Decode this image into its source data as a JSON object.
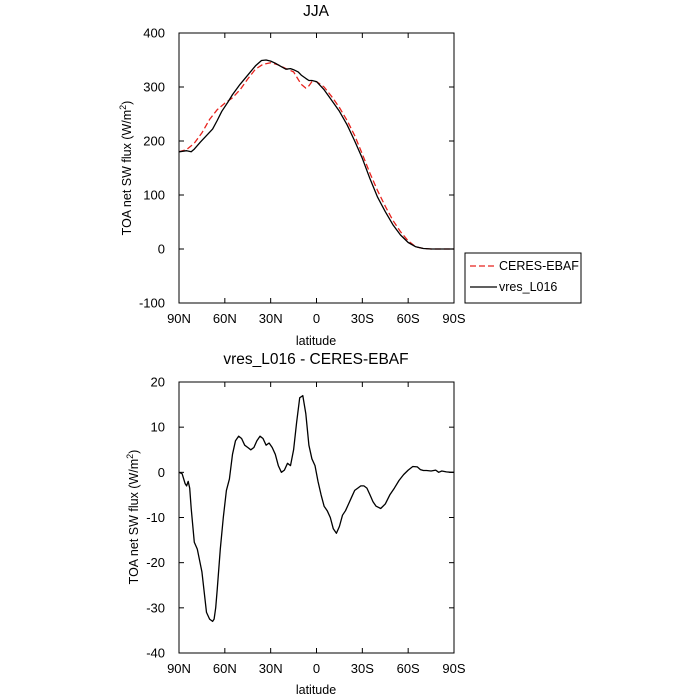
{
  "chart_data": [
    {
      "type": "line",
      "title": "JJA",
      "xlabel": "latitude",
      "ylabel": "TOA net SW flux (W/m²)",
      "xlim": [
        90,
        -90
      ],
      "ylim": [
        -100,
        400
      ],
      "xticks": [
        90,
        60,
        30,
        0,
        -30,
        -60,
        -90
      ],
      "xtick_labels": [
        "90N",
        "60N",
        "30N",
        "0",
        "30S",
        "60S",
        "90S"
      ],
      "yticks": [
        -100,
        0,
        100,
        200,
        300,
        400
      ],
      "ytick_labels": [
        "-100",
        "0",
        "100",
        "200",
        "300",
        "400"
      ],
      "grid": false,
      "legend": "outside-right",
      "series": [
        {
          "name": "CERES-EBAF",
          "color": "#e8231e",
          "dash": "dashed",
          "x": [
            90,
            85,
            80,
            75,
            70,
            65,
            60,
            55,
            50,
            45,
            40,
            35,
            30,
            25,
            20,
            15,
            10,
            7,
            5,
            3,
            0,
            -5,
            -10,
            -15,
            -20,
            -25,
            -30,
            -35,
            -40,
            -45,
            -50,
            -55,
            -60,
            -65,
            -70,
            -75,
            -80,
            -85,
            -90
          ],
          "y": [
            180,
            184,
            196,
            215,
            240,
            258,
            270,
            280,
            295,
            315,
            333,
            342,
            345,
            341,
            334,
            328,
            305,
            298,
            302,
            310,
            310,
            300,
            282,
            262,
            238,
            210,
            176,
            140,
            108,
            79,
            53,
            32,
            15,
            4,
            1,
            0,
            0,
            0,
            0
          ]
        },
        {
          "name": "vres_L016",
          "color": "#000000",
          "dash": "solid",
          "x": [
            90,
            85,
            82,
            80,
            76,
            72,
            68,
            65,
            62,
            58,
            55,
            50,
            45,
            40,
            36,
            33,
            30,
            27,
            25,
            22,
            20,
            17,
            15,
            12,
            10,
            7,
            5,
            3,
            0,
            -5,
            -10,
            -15,
            -20,
            -25,
            -30,
            -35,
            -40,
            -45,
            -50,
            -55,
            -60,
            -65,
            -70,
            -75,
            -80,
            -85,
            -90
          ],
          "y": [
            180,
            182,
            180,
            185,
            198,
            210,
            222,
            238,
            255,
            272,
            286,
            305,
            322,
            339,
            349,
            350,
            348,
            344,
            341,
            336,
            333,
            334,
            332,
            328,
            322,
            316,
            312,
            312,
            310,
            295,
            275,
            255,
            230,
            200,
            168,
            130,
            96,
            69,
            45,
            26,
            12,
            4,
            1,
            0,
            0,
            0,
            0
          ]
        }
      ]
    },
    {
      "type": "line",
      "title": "vres_L016 - CERES-EBAF",
      "xlabel": "latitude",
      "ylabel": "TOA net SW flux (W/m²)",
      "xlim": [
        90,
        -90
      ],
      "ylim": [
        -40,
        20
      ],
      "xticks": [
        90,
        60,
        30,
        0,
        -30,
        -60,
        -90
      ],
      "xtick_labels": [
        "90N",
        "60N",
        "30N",
        "0",
        "30S",
        "60S",
        "90S"
      ],
      "yticks": [
        -40,
        -30,
        -20,
        -10,
        0,
        10,
        20
      ],
      "ytick_labels": [
        "-40",
        "-30",
        "-20",
        "-10",
        "0",
        "10",
        "20"
      ],
      "grid": false,
      "series": [
        {
          "color": "#000000",
          "dash": "solid",
          "x": [
            90,
            88,
            86,
            85,
            84,
            83,
            82,
            80,
            78,
            75,
            72,
            70,
            68,
            67,
            66,
            65,
            63,
            61,
            59,
            57,
            55,
            53,
            51,
            49,
            47,
            45,
            43,
            41,
            39,
            37,
            35,
            33,
            31,
            29,
            27,
            25,
            23,
            21,
            19,
            17,
            15,
            13,
            11,
            9,
            7,
            5,
            3,
            1,
            -1,
            -3,
            -5,
            -7,
            -9,
            -11,
            -13,
            -15,
            -17,
            -19,
            -21,
            -23,
            -25,
            -27,
            -29,
            -31,
            -33,
            -35,
            -37,
            -39,
            -42,
            -45,
            -48,
            -51,
            -54,
            -57,
            -60,
            -63,
            -66,
            -68,
            -70,
            -72,
            -75,
            -78,
            -80,
            -82,
            -85,
            -88,
            -90
          ],
          "y": [
            0,
            -0.3,
            -2.5,
            -3.0,
            -2.0,
            -3.5,
            -8.0,
            -15.5,
            -17.0,
            -22.0,
            -31.0,
            -32.5,
            -33.0,
            -32.5,
            -30.0,
            -26.0,
            -17.0,
            -10.0,
            -4.0,
            -1.5,
            4.0,
            7.0,
            8.0,
            7.5,
            6.0,
            5.5,
            5.0,
            5.5,
            7.0,
            8.0,
            7.5,
            6.0,
            6.5,
            5.5,
            4.0,
            1.5,
            0,
            0.5,
            2.0,
            1.5,
            5.0,
            11.0,
            16.5,
            17.0,
            13.0,
            6.0,
            3.0,
            1.5,
            -2.0,
            -5.0,
            -7.5,
            -8.5,
            -10.0,
            -12.5,
            -13.5,
            -12.0,
            -9.5,
            -8.5,
            -7.0,
            -5.5,
            -4.0,
            -3.5,
            -3.0,
            -3.0,
            -3.5,
            -5.0,
            -6.5,
            -7.5,
            -8.0,
            -7.0,
            -5.0,
            -3.5,
            -1.8,
            -0.5,
            0.5,
            1.3,
            1.2,
            0.6,
            0.4,
            0.4,
            0.3,
            0.5,
            0.0,
            0.3,
            0.1,
            0.0,
            0.0
          ]
        }
      ]
    }
  ]
}
